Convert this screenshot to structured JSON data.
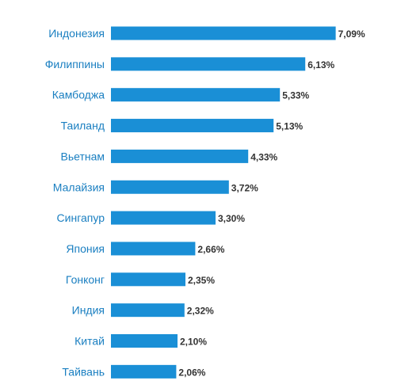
{
  "chart_data": {
    "type": "bar",
    "orientation": "horizontal",
    "title": "",
    "xlabel": "",
    "ylabel": "",
    "grid": false,
    "legend": "none",
    "categories": [
      "Индонезия",
      "Филиппины",
      "Камбоджа",
      "Таиланд",
      "Вьетнам",
      "Малайзия",
      "Сингапур",
      "Япония",
      "Гонконг",
      "Индия",
      "Китай",
      "Тайвань"
    ],
    "values": [
      7.09,
      6.13,
      5.33,
      5.13,
      4.33,
      3.72,
      3.3,
      2.66,
      2.35,
      2.32,
      2.1,
      2.06
    ],
    "value_labels": [
      "7,09%",
      "6,13%",
      "5,33%",
      "5,13%",
      "4,33%",
      "3,72%",
      "3,30%",
      "2,66%",
      "2,35%",
      "2,32%",
      "2,10%",
      "2,06%"
    ],
    "colors": {
      "bar": "#1a8fd6",
      "category_text": "#1a7fc1",
      "value_text": "#333333"
    }
  }
}
